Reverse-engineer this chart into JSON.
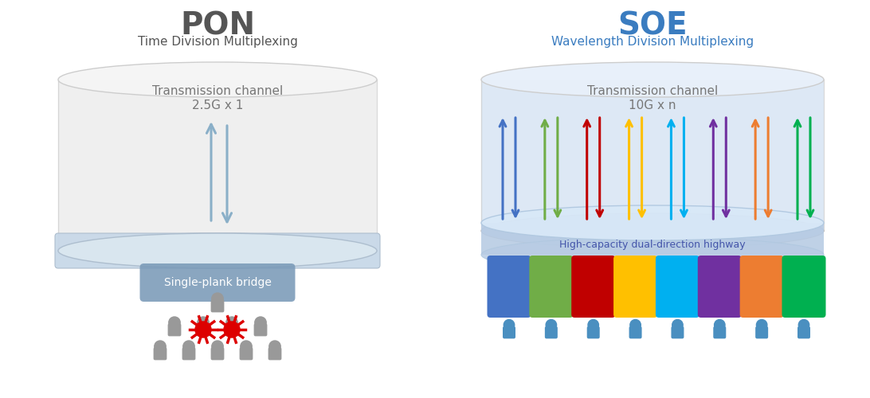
{
  "bg_color": "#ffffff",
  "pon_title": "PON",
  "pon_subtitle": "Time Division Multiplexing",
  "pon_title_color": "#555555",
  "pon_subtitle_color": "#555555",
  "pon_channel_text1": "Transmission channel",
  "pon_channel_text2": "2.5G x 1",
  "pon_bridge_text": "Single-plank bridge",
  "pon_arrow_color": "#8aafc8",
  "soe_title": "SOE",
  "soe_subtitle": "Wavelength Division Multiplexing",
  "soe_title_color": "#3a7cc0",
  "soe_subtitle_color": "#3a7cc0",
  "soe_channel_text1": "Transmission channel",
  "soe_channel_text2": "10G x n",
  "soe_highway_text": "High-capacity dual-direction highway",
  "soe_colors": [
    "#4472c4",
    "#70ad47",
    "#c00000",
    "#ffc000",
    "#00b0f0",
    "#7030a0",
    "#ed7d31",
    "#00b050"
  ],
  "pon_body_color": "#efefef",
  "pon_top_color": "#e0e0e0",
  "pon_base_color": "#c8d8e8",
  "soe_body_color": "#dde8f5",
  "soe_top_color": "#ccddf0",
  "soe_base_color": "#b8cce4",
  "bridge_color": "#7a9ab8",
  "person_gray": "#999999",
  "person_blue": "#4a8fc0",
  "spark_red": "#dd0000"
}
